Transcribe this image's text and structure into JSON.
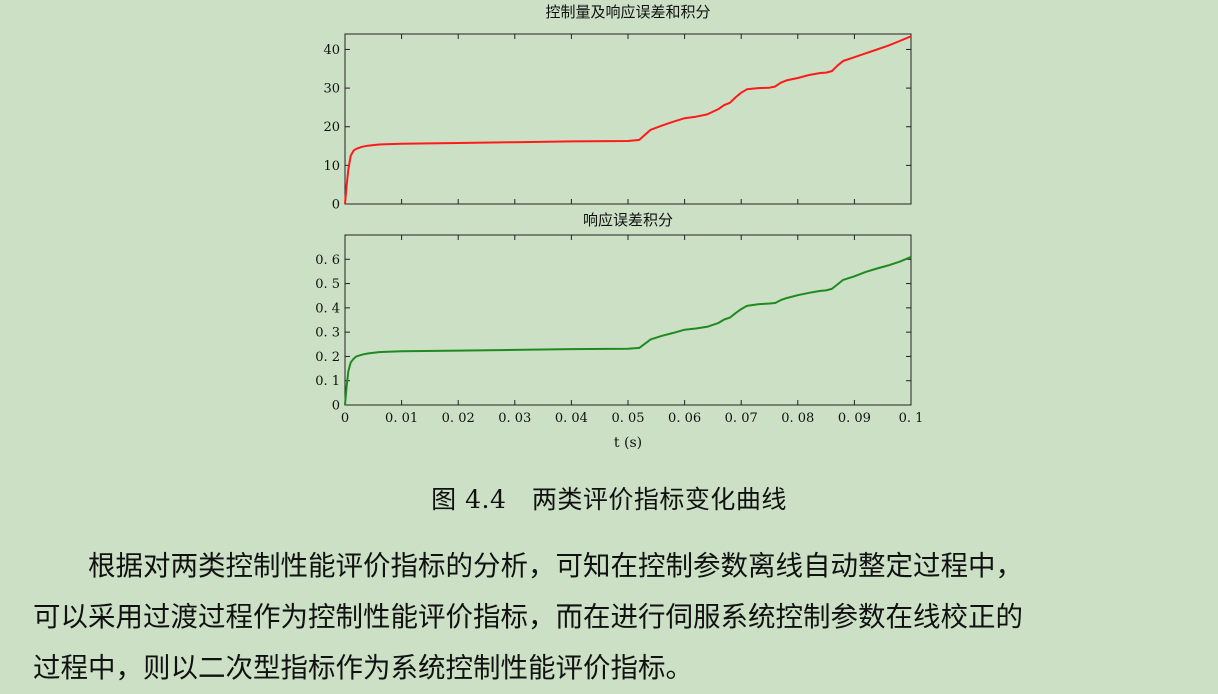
{
  "chart_data": [
    {
      "type": "line",
      "title": "控制量及响应误差和积分",
      "xlim": [
        0,
        0.1
      ],
      "ylim": [
        0,
        44
      ],
      "x_ticks": [
        0,
        0.01,
        0.02,
        0.03,
        0.04,
        0.05,
        0.06,
        0.07,
        0.08,
        0.09,
        0.1
      ],
      "y_ticks": [
        0,
        10,
        20,
        30,
        40
      ],
      "grid": false,
      "series": [
        {
          "color": "#ff1a1a",
          "x": [
            0,
            0.0003,
            0.0006,
            0.001,
            0.0015,
            0.002,
            0.003,
            0.004,
            0.006,
            0.01,
            0.02,
            0.03,
            0.04,
            0.05,
            0.052,
            0.054,
            0.056,
            0.058,
            0.06,
            0.062,
            0.064,
            0.066,
            0.067,
            0.068,
            0.069,
            0.07,
            0.071,
            0.073,
            0.075,
            0.076,
            0.077,
            0.078,
            0.08,
            0.082,
            0.084,
            0.085,
            0.086,
            0.087,
            0.088,
            0.09,
            0.092,
            0.094,
            0.096,
            0.098,
            0.1
          ],
          "y": [
            0,
            5,
            9,
            12.5,
            13.8,
            14.3,
            14.8,
            15.1,
            15.4,
            15.6,
            15.8,
            16,
            16.2,
            16.3,
            16.6,
            19.2,
            20.3,
            21.3,
            22.2,
            22.6,
            23.2,
            24.6,
            25.6,
            26.2,
            27.6,
            28.8,
            29.7,
            30,
            30.1,
            30.4,
            31.4,
            32,
            32.6,
            33.4,
            33.9,
            34,
            34.4,
            35.8,
            37,
            38,
            39,
            40,
            41,
            42.2,
            43.4
          ]
        }
      ]
    },
    {
      "type": "line",
      "title": "响应误差积分",
      "xlabel": "t (s)",
      "xlim": [
        0,
        0.1
      ],
      "ylim": [
        0,
        0.7
      ],
      "x_ticks": [
        0,
        0.01,
        0.02,
        0.03,
        0.04,
        0.05,
        0.06,
        0.07,
        0.08,
        0.09,
        0.1
      ],
      "x_tick_labels": [
        "0",
        "0. 01",
        "0. 02",
        "0. 03",
        "0. 04",
        "0. 05",
        "0. 06",
        "0. 07",
        "0. 08",
        "0. 09",
        "0. 1"
      ],
      "y_ticks": [
        0,
        0.1,
        0.2,
        0.3,
        0.4,
        0.5,
        0.6
      ],
      "y_tick_labels": [
        "0",
        "0. 1",
        "0. 2",
        "0. 3",
        "0. 4",
        "0. 5",
        "0. 6"
      ],
      "grid": false,
      "series": [
        {
          "color": "#1f8a1f",
          "x": [
            0,
            0.0003,
            0.0006,
            0.001,
            0.0015,
            0.002,
            0.003,
            0.004,
            0.006,
            0.01,
            0.02,
            0.03,
            0.04,
            0.05,
            0.052,
            0.054,
            0.056,
            0.058,
            0.06,
            0.062,
            0.064,
            0.066,
            0.067,
            0.068,
            0.069,
            0.07,
            0.071,
            0.073,
            0.075,
            0.076,
            0.077,
            0.078,
            0.08,
            0.082,
            0.084,
            0.085,
            0.086,
            0.087,
            0.088,
            0.09,
            0.092,
            0.094,
            0.096,
            0.098,
            0.1
          ],
          "y": [
            0,
            0.08,
            0.14,
            0.175,
            0.19,
            0.2,
            0.207,
            0.212,
            0.218,
            0.221,
            0.224,
            0.227,
            0.23,
            0.232,
            0.235,
            0.27,
            0.285,
            0.297,
            0.31,
            0.315,
            0.322,
            0.338,
            0.352,
            0.36,
            0.378,
            0.395,
            0.408,
            0.415,
            0.418,
            0.42,
            0.432,
            0.44,
            0.452,
            0.462,
            0.47,
            0.472,
            0.478,
            0.496,
            0.515,
            0.53,
            0.548,
            0.562,
            0.575,
            0.59,
            0.61
          ]
        }
      ]
    }
  ],
  "caption": "图 4.4　两类评价指标变化曲线",
  "body_lines": [
    "　　根据对两类控制性能评价指标的分析，可知在控制参数离线自动整定过程中，",
    "可以采用过渡过程作为控制性能评价指标，而在进行伺服系统控制参数在线校正的",
    "过程中，则以二次型指标作为系统控制性能评价指标。"
  ]
}
